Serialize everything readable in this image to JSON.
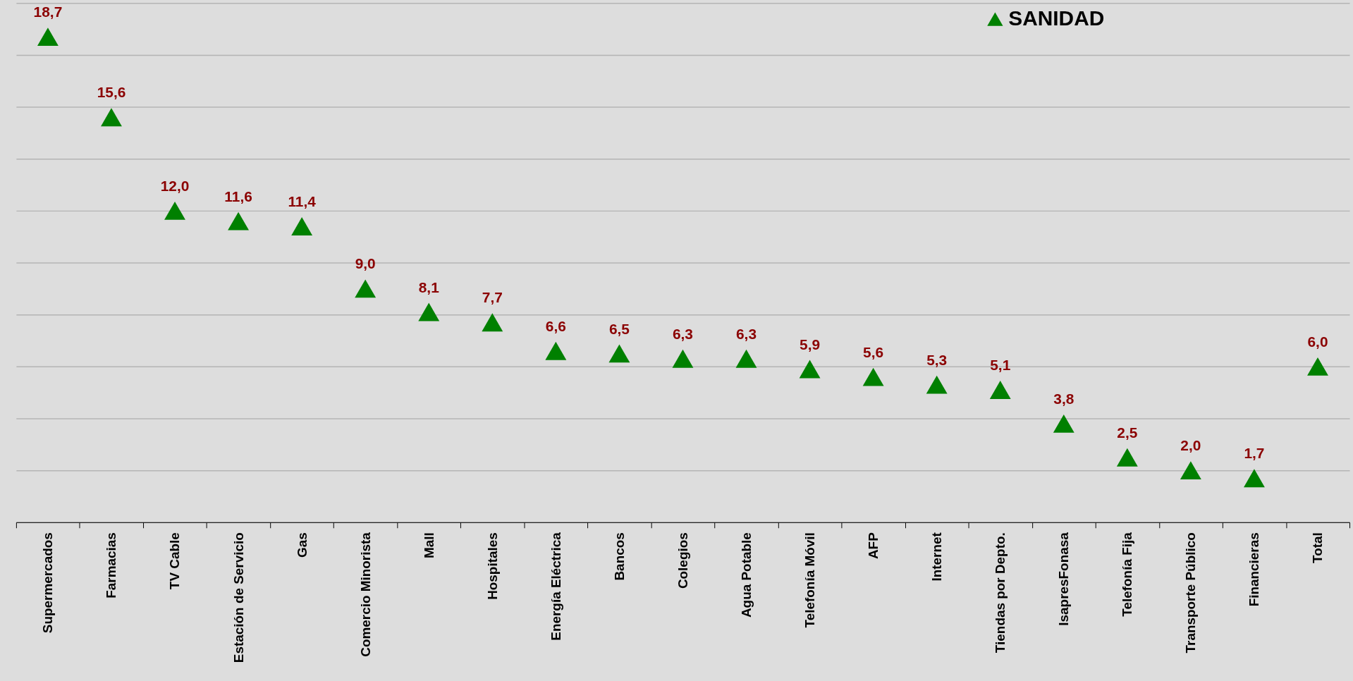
{
  "chart_data": {
    "type": "scatter",
    "categories": [
      "Supermercados",
      "Farmacias",
      "TV Cable",
      "Estación de Servicio",
      "Gas",
      "Comercio Minorista",
      "Mall",
      "Hospitales",
      "Energía Eléctrica",
      "Bancos",
      "Colegios",
      "Agua Potable",
      "Telefonía Móvil",
      "AFP",
      "Internet",
      "Tiendas por Depto.",
      "IsapresFonasa",
      "Telefonía Fija",
      "Transporte Público",
      "Financieras",
      "Total"
    ],
    "series": [
      {
        "name": "SANIDAD",
        "color": "#008000",
        "values": [
          18.7,
          15.6,
          12.0,
          11.6,
          11.4,
          9.0,
          8.1,
          7.7,
          6.6,
          6.5,
          6.3,
          6.3,
          5.9,
          5.6,
          5.3,
          5.1,
          3.8,
          2.5,
          2.0,
          1.7,
          6.0
        ],
        "value_labels": [
          "18,7",
          "15,6",
          "12,0",
          "11,6",
          "11,4",
          "9,0",
          "8,1",
          "7,7",
          "6,6",
          "6,5",
          "6,3",
          "6,3",
          "5,9",
          "5,6",
          "5,3",
          "5,1",
          "3,8",
          "2,5",
          "2,0",
          "1,7",
          "6,0"
        ]
      }
    ],
    "ylim": [
      0,
      20
    ],
    "yticks": [
      {
        "value": 0,
        "label": null
      },
      {
        "value": 2,
        "label": null
      },
      {
        "value": 4,
        "label": null
      },
      {
        "value": 6,
        "label": null
      },
      {
        "value": 8,
        "label": null
      },
      {
        "value": 10,
        "label": null
      },
      {
        "value": 12,
        "label": null
      },
      {
        "value": 14,
        "label": null
      },
      {
        "value": 16,
        "label": null
      },
      {
        "value": 18,
        "label": null
      },
      {
        "value": 20,
        "label": null
      }
    ],
    "tick_labels": "x",
    "grid": "y",
    "legend": "top right",
    "marker": "triangle"
  }
}
